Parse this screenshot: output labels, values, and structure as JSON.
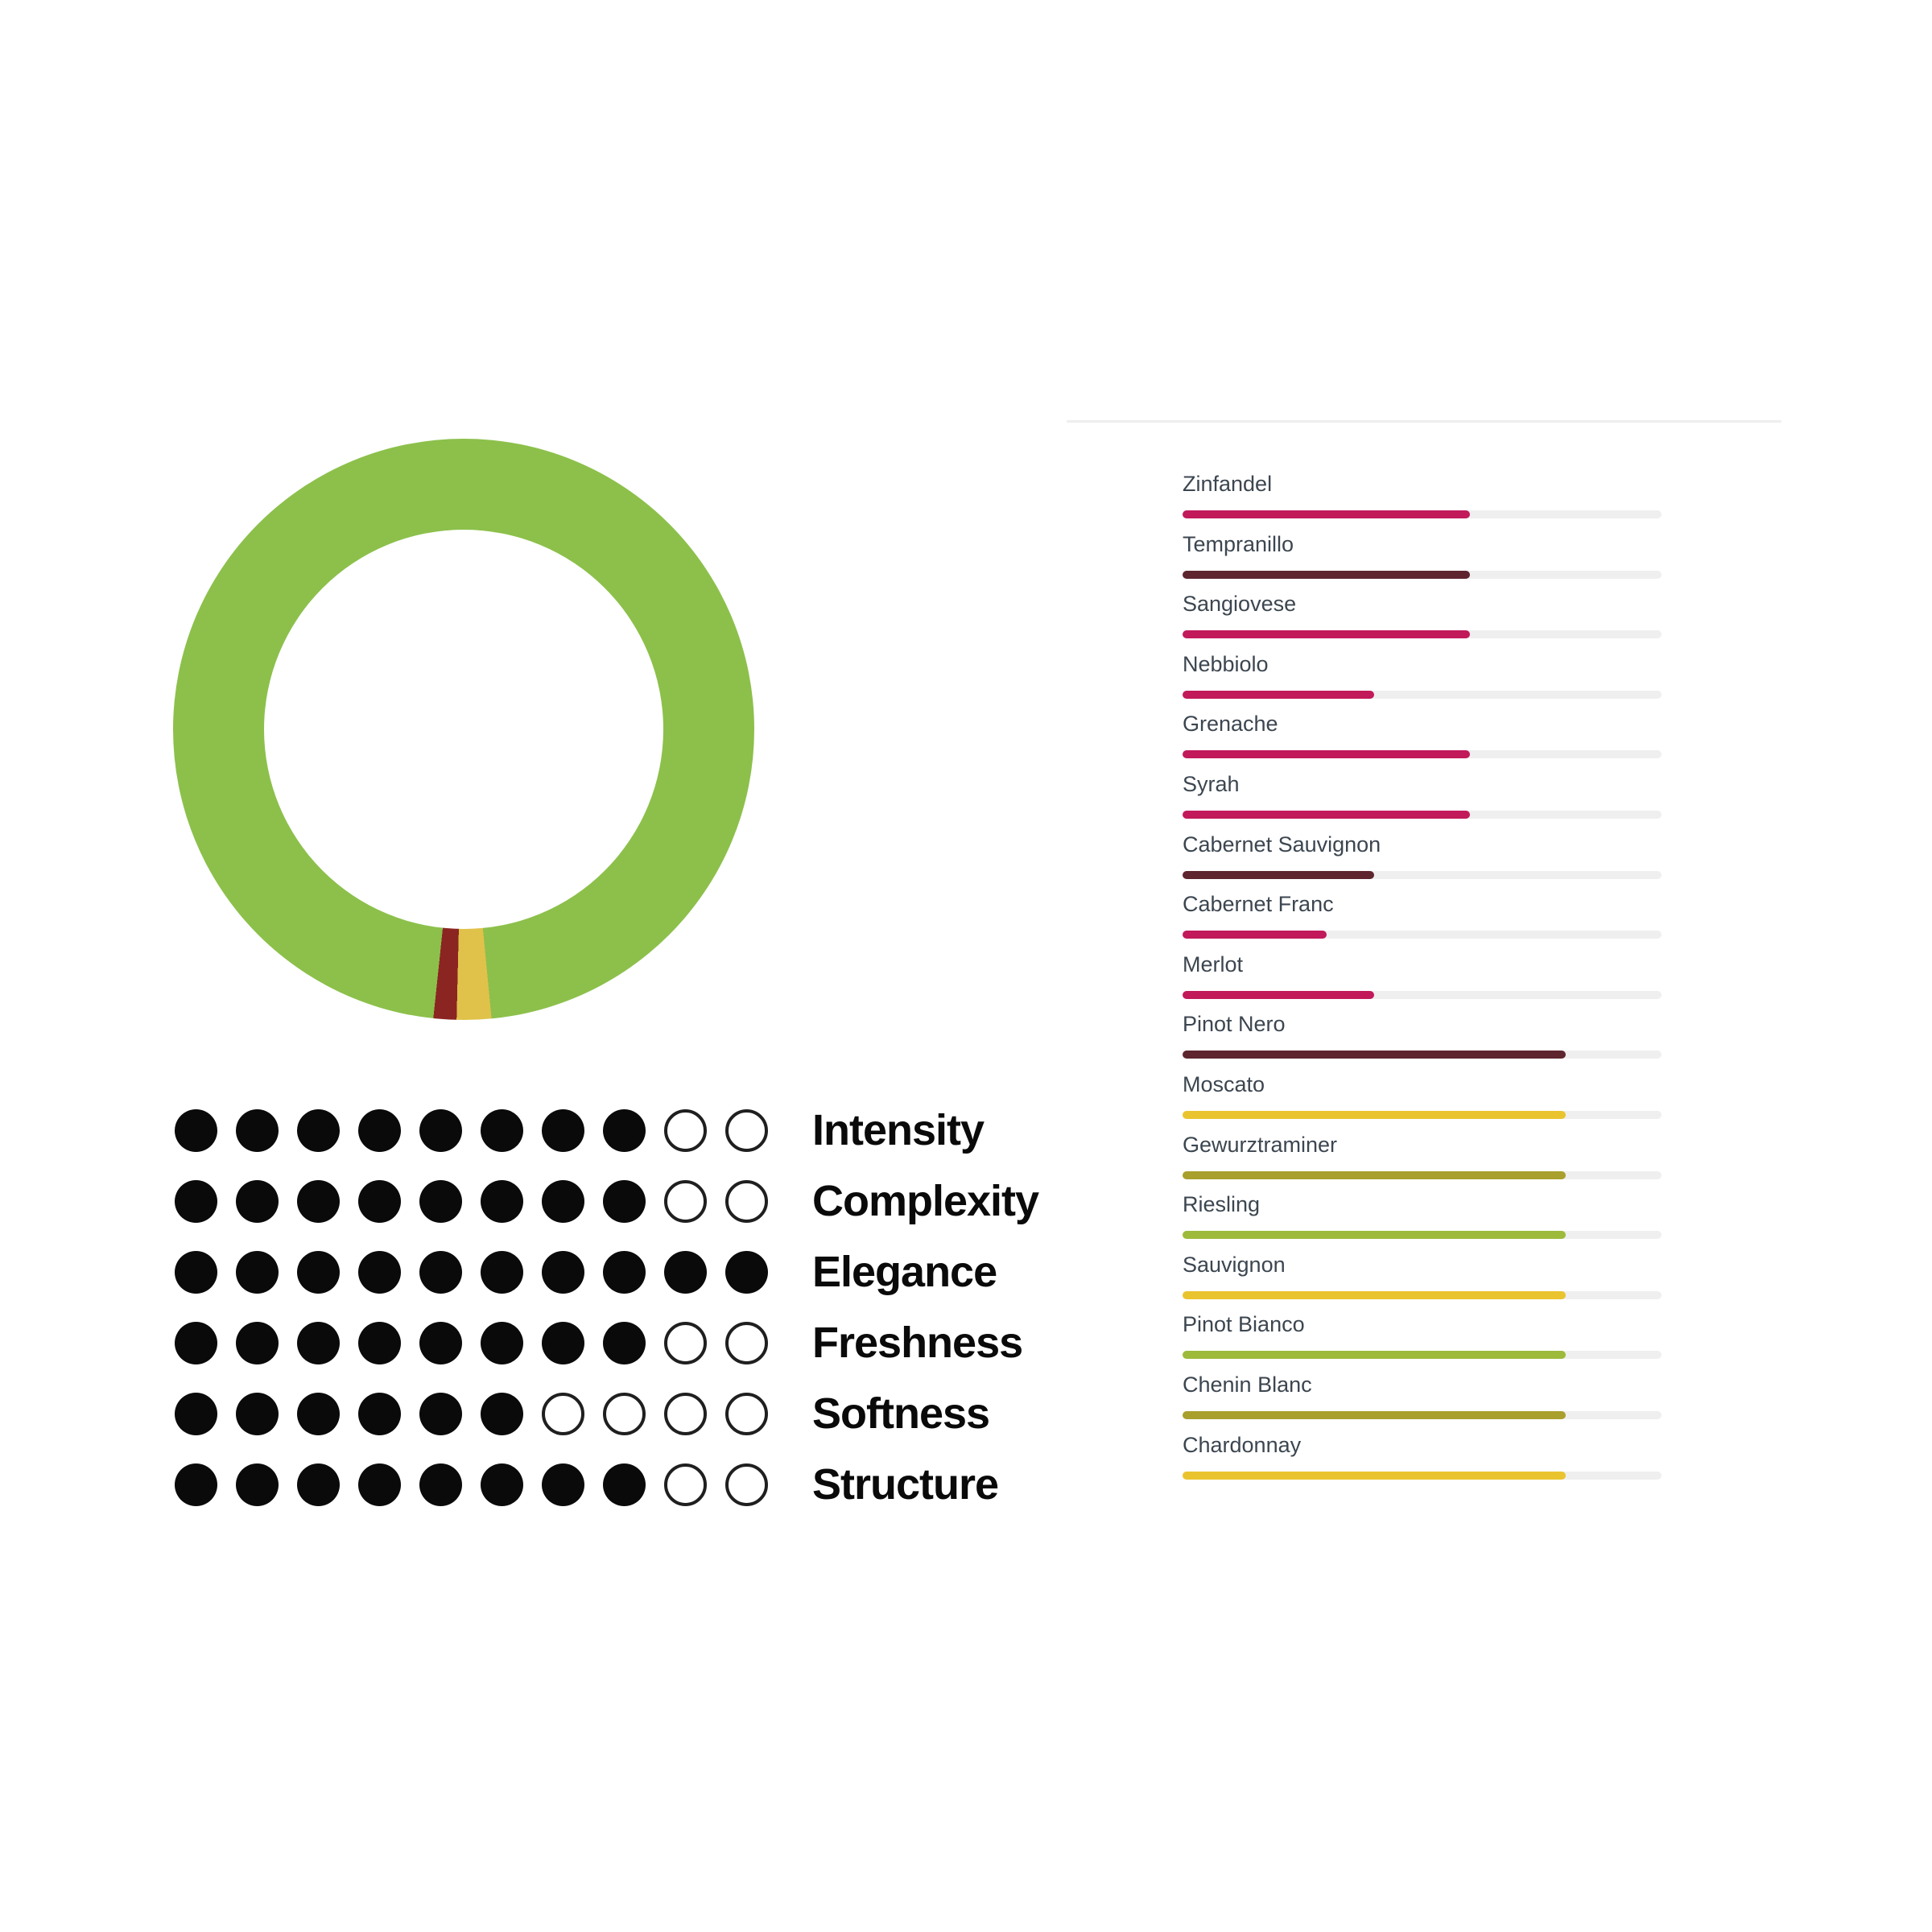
{
  "donut": {
    "segments": [
      {
        "name": "green-main",
        "color": "#8CC04B",
        "start_deg": 0,
        "end_deg": 174.5
      },
      {
        "name": "yellow",
        "color": "#E0C24A",
        "start_deg": 174.5,
        "end_deg": 181.4
      },
      {
        "name": "red",
        "color": "#8B2522",
        "start_deg": 181.4,
        "end_deg": 186.0
      },
      {
        "name": "green-wrap",
        "color": "#8CC04B",
        "start_deg": 186.0,
        "end_deg": 360
      }
    ]
  },
  "ratings": {
    "max": 10,
    "items": [
      {
        "label": "Intensity",
        "value": 8
      },
      {
        "label": "Complexity",
        "value": 8
      },
      {
        "label": "Elegance",
        "value": 10
      },
      {
        "label": "Freshness",
        "value": 8
      },
      {
        "label": "Softness",
        "value": 6
      },
      {
        "label": "Structure",
        "value": 8
      }
    ]
  },
  "wines": {
    "track_color": "#efefef",
    "items": [
      {
        "label": "Zinfandel",
        "value": 60,
        "color": "#C2195B"
      },
      {
        "label": "Tempranillo",
        "value": 60,
        "color": "#5E252F"
      },
      {
        "label": "Sangiovese",
        "value": 60,
        "color": "#C2195B"
      },
      {
        "label": "Nebbiolo",
        "value": 40,
        "color": "#C2195B"
      },
      {
        "label": "Grenache",
        "value": 60,
        "color": "#C2195B"
      },
      {
        "label": "Syrah",
        "value": 60,
        "color": "#C2195B"
      },
      {
        "label": "Cabernet Sauvignon",
        "value": 40,
        "color": "#5E252F"
      },
      {
        "label": "Cabernet Franc",
        "value": 30,
        "color": "#C2195B"
      },
      {
        "label": "Merlot",
        "value": 40,
        "color": "#C2195B"
      },
      {
        "label": "Pinot Nero",
        "value": 80,
        "color": "#5E252F"
      },
      {
        "label": "Moscato",
        "value": 80,
        "color": "#EAC42F"
      },
      {
        "label": "Gewurztraminer",
        "value": 80,
        "color": "#A99F2C"
      },
      {
        "label": "Riesling",
        "value": 80,
        "color": "#9DBA3B"
      },
      {
        "label": "Sauvignon",
        "value": 80,
        "color": "#EAC42F"
      },
      {
        "label": "Pinot Bianco",
        "value": 80,
        "color": "#9DBA3B"
      },
      {
        "label": "Chenin Blanc",
        "value": 80,
        "color": "#A99F2C"
      },
      {
        "label": "Chardonnay",
        "value": 80,
        "color": "#EAC42F"
      }
    ]
  },
  "chart_data": [
    {
      "type": "pie",
      "donut": true,
      "title": "",
      "labels": [
        "green",
        "yellow",
        "red"
      ],
      "values": [
        96.8,
        1.9,
        1.3
      ],
      "colors": [
        "#8CC04B",
        "#E0C24A",
        "#8B2522"
      ],
      "start_angle_deg": 0,
      "legend_position": "none",
      "note": "clockwise from top: green 0-174.5deg, yellow 174.5-181.4deg, red 181.4-186deg, green 186-360deg"
    },
    {
      "type": "bar",
      "subtype": "dot-rating",
      "categories": [
        "Intensity",
        "Complexity",
        "Elegance",
        "Freshness",
        "Softness",
        "Structure"
      ],
      "values": [
        8,
        8,
        10,
        8,
        6,
        8
      ],
      "ylim": [
        0,
        10
      ],
      "title": "",
      "xlabel": "",
      "ylabel": "",
      "grid": false,
      "legend_position": "none"
    },
    {
      "type": "bar",
      "subtype": "horizontal-progress",
      "categories": [
        "Zinfandel",
        "Tempranillo",
        "Sangiovese",
        "Nebbiolo",
        "Grenache",
        "Syrah",
        "Cabernet Sauvignon",
        "Cabernet Franc",
        "Merlot",
        "Pinot Nero",
        "Moscato",
        "Gewurztraminer",
        "Riesling",
        "Sauvignon",
        "Pinot Bianco",
        "Chenin Blanc",
        "Chardonnay"
      ],
      "values": [
        60,
        60,
        60,
        40,
        60,
        60,
        40,
        30,
        40,
        80,
        80,
        80,
        80,
        80,
        80,
        80,
        80
      ],
      "bar_colors": [
        "#C2195B",
        "#5E252F",
        "#C2195B",
        "#C2195B",
        "#C2195B",
        "#C2195B",
        "#5E252F",
        "#C2195B",
        "#C2195B",
        "#5E252F",
        "#EAC42F",
        "#A99F2C",
        "#9DBA3B",
        "#EAC42F",
        "#9DBA3B",
        "#A99F2C",
        "#EAC42F"
      ],
      "track_color": "#efefef",
      "xlim": [
        0,
        100
      ],
      "title": "",
      "xlabel": "",
      "ylabel": "",
      "grid": false,
      "legend_position": "none"
    }
  ]
}
